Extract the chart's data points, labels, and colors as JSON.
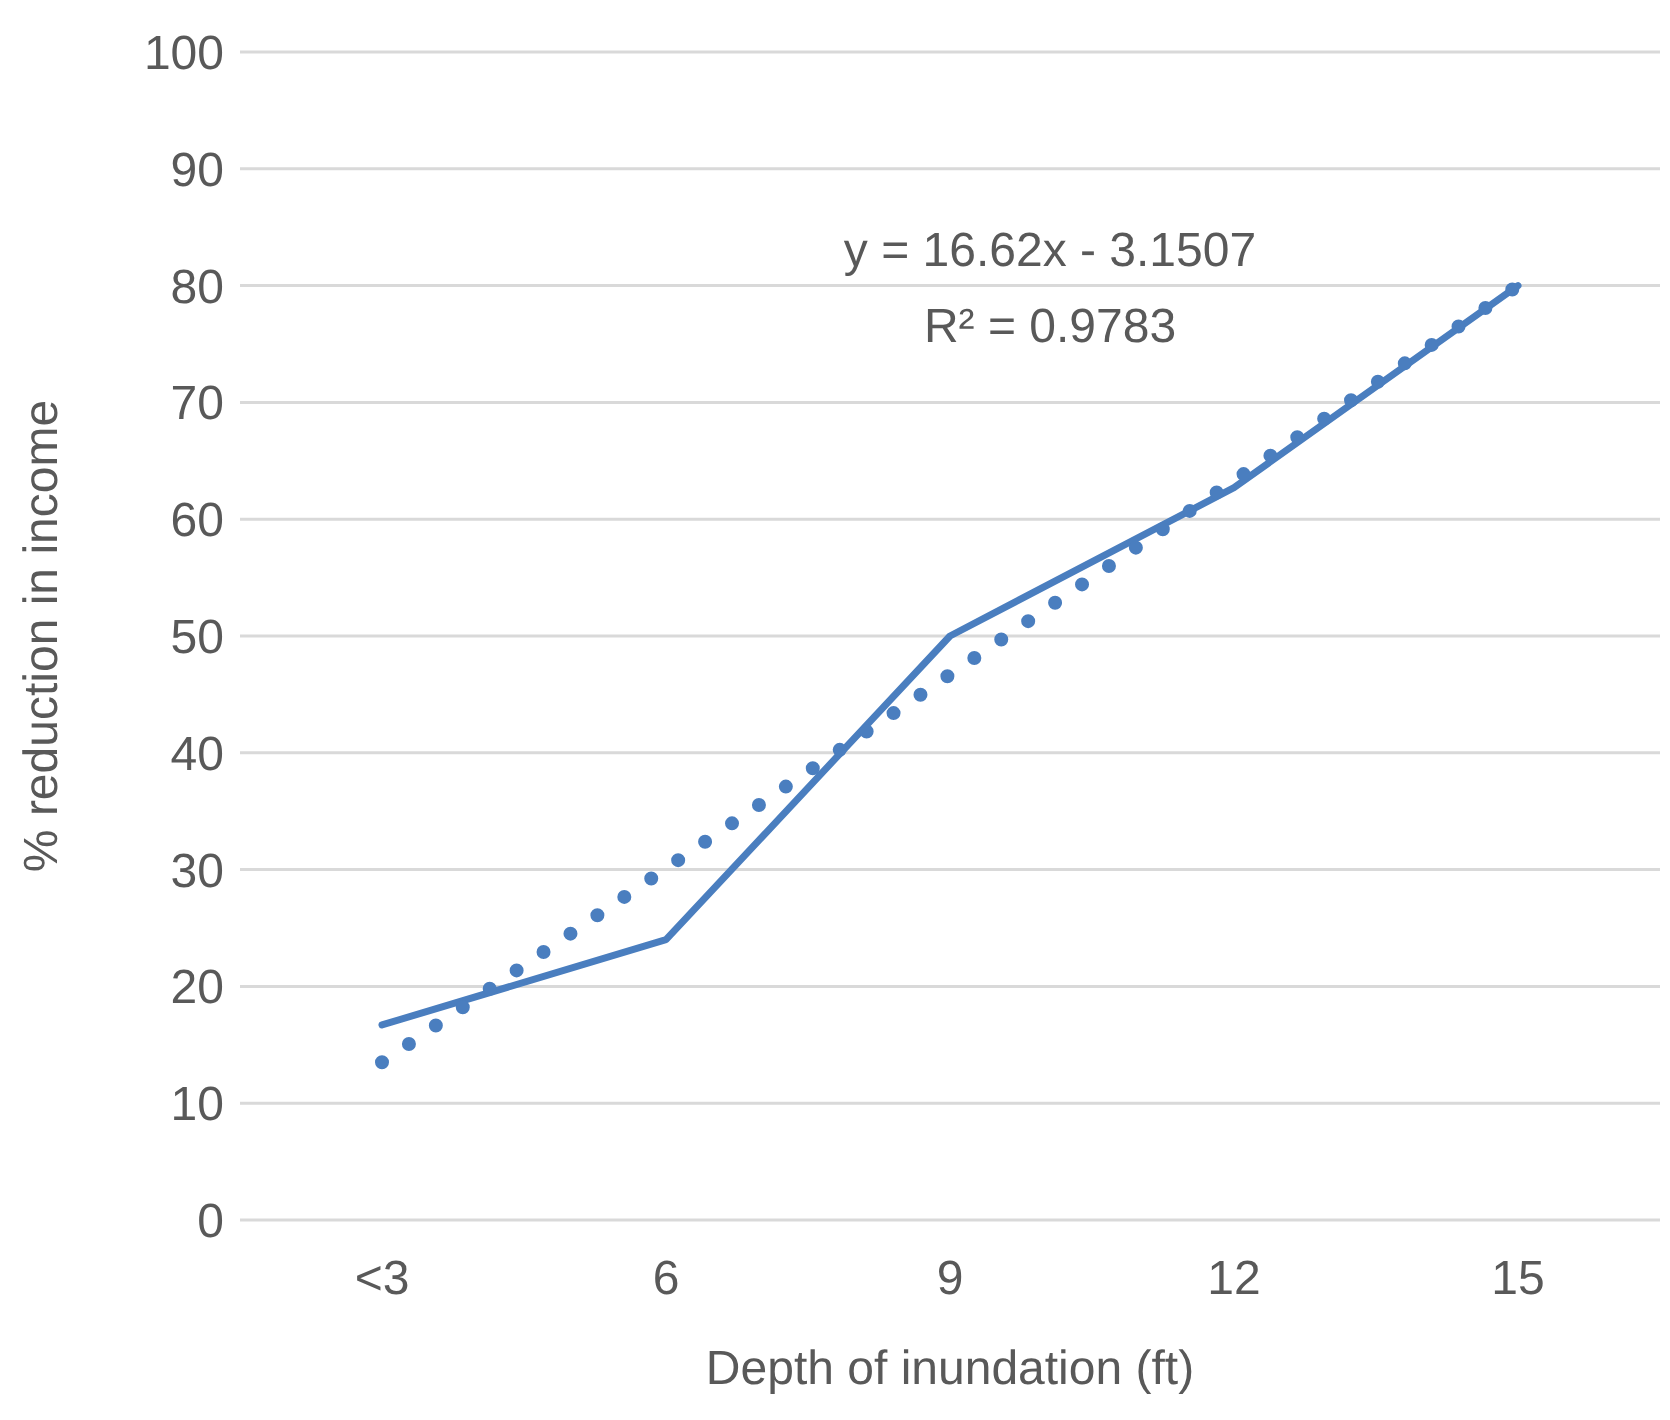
{
  "chart_data": {
    "type": "line",
    "xlabel": "Depth of inundation (ft)",
    "ylabel": "% reduction in income",
    "categories": [
      "<3",
      "6",
      "9",
      "12",
      "15"
    ],
    "series": [
      {
        "color": "#4a7ebf",
        "values": [
          16.7,
          24,
          50,
          62.7,
          80
        ],
        "line_style": "solid"
      },
      {
        "color": "#4a7ebf",
        "values": [
          13.5,
          30.1,
          46.7,
          63.3,
          80
        ],
        "line_style": "dotted"
      }
    ],
    "ylim": [
      0,
      100
    ],
    "yticks": [
      0,
      10,
      20,
      30,
      40,
      50,
      60,
      70,
      80,
      90,
      100
    ],
    "grid": "y",
    "marker": "none",
    "annotations": [
      "y = 16.62x - 3.1507",
      "R² = 0.9783"
    ]
  }
}
